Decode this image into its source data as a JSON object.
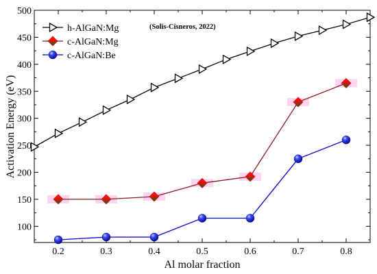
{
  "chart_data": {
    "type": "line",
    "xlabel": "Al molar fraction",
    "ylabel": "Activation Energy (eV)",
    "xlim": [
      0.15,
      0.85
    ],
    "ylim": [
      70,
      500
    ],
    "x_ticks": [
      "0.2",
      "0.3",
      "0.4",
      "0.5",
      "0.6",
      "0.7",
      "0.8"
    ],
    "y_ticks": [
      "100",
      "150",
      "200",
      "250",
      "300",
      "350",
      "400",
      "450",
      "500"
    ],
    "annotation": "(Solis-Cisneros, 2022)",
    "legend_position": "top-left",
    "grid": false,
    "series": [
      {
        "name": "h-AlGaN:Mg",
        "marker": "triangle-right-open",
        "color": "#000000",
        "x": [
          0.15,
          0.2,
          0.25,
          0.3,
          0.35,
          0.4,
          0.45,
          0.5,
          0.55,
          0.6,
          0.65,
          0.7,
          0.75,
          0.8,
          0.85
        ],
        "y": [
          247,
          272,
          293,
          315,
          335,
          357,
          374,
          391,
          409,
          424,
          439,
          452,
          463,
          474,
          487
        ]
      },
      {
        "name": "c-AlGaN:Mg",
        "marker": "diamond",
        "color": "#ff0000",
        "line_color": "#8b1a1a",
        "x": [
          0.2,
          0.3,
          0.4,
          0.5,
          0.6,
          0.7,
          0.8
        ],
        "y": [
          150,
          150,
          155,
          180,
          192,
          330,
          365
        ]
      },
      {
        "name": "c-AlGaN:Be",
        "marker": "circle",
        "color": "#1a1aff",
        "line_color": "#0000cc",
        "x": [
          0.2,
          0.3,
          0.4,
          0.5,
          0.6,
          0.7,
          0.8
        ],
        "y": [
          75,
          80,
          80,
          115,
          115,
          225,
          260
        ]
      }
    ]
  }
}
